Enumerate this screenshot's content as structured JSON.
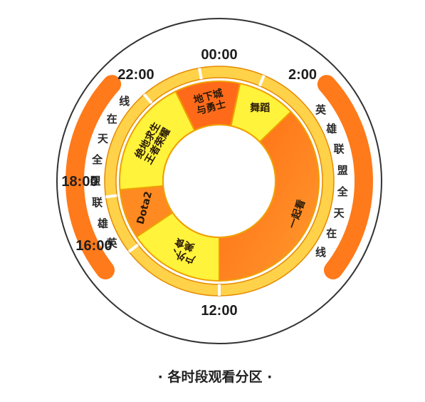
{
  "time_labels": {
    "t0000": "00:00",
    "t0200": "2:00",
    "t1200": "12:00",
    "t1600": "16:00",
    "t1800": "18:00",
    "t2200": "22:00"
  },
  "segments": [
    {
      "key": "dance",
      "lines": [
        "舞蹈"
      ],
      "color": "#fff33b"
    },
    {
      "key": "together",
      "lines": [
        "一起看"
      ],
      "color": "#ff7f1e"
    },
    {
      "key": "outdoor",
      "lines": [
        "户外、",
        "美食"
      ],
      "color": "#fff33b"
    },
    {
      "key": "dota2",
      "lines": [
        "Dota2"
      ],
      "color": "#ff8a22"
    },
    {
      "key": "pubg_kings",
      "lines": [
        "绝地求生",
        "王者荣耀"
      ],
      "color": "#fff33b"
    },
    {
      "key": "dnf",
      "lines": [
        "地下城",
        "与勇士"
      ],
      "color": "#ff6a1a"
    }
  ],
  "side_text": {
    "left": [
      "英",
      "雄",
      "联",
      "盟",
      "全",
      "天",
      "在",
      "线"
    ],
    "right": [
      "英",
      "雄",
      "联",
      "盟",
      "全",
      "天",
      "在",
      "线"
    ]
  },
  "caption": "· 各时段观看分区 ·",
  "colors": {
    "outer_ring_fill": "#ffd24a",
    "outer_ring_stroke": "#e58a00",
    "side_arc": "#ff7a1a",
    "outer_circle": "#333333"
  }
}
